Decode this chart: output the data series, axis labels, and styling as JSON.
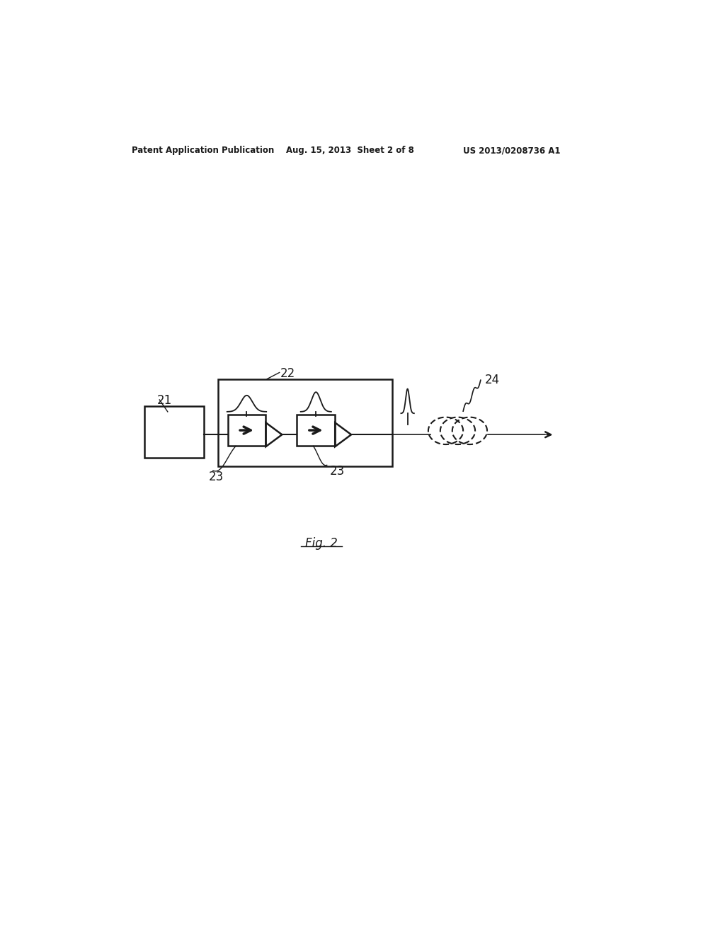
{
  "background_color": "#ffffff",
  "header_left": "Patent Application Publication",
  "header_center": "Aug. 15, 2013  Sheet 2 of 8",
  "header_right": "US 2013/0208736 A1",
  "fig_label": "Fig. 2",
  "label_21": "21",
  "label_22": "22",
  "label_23": "23",
  "label_24": "24",
  "line_color": "#1a1a1a"
}
